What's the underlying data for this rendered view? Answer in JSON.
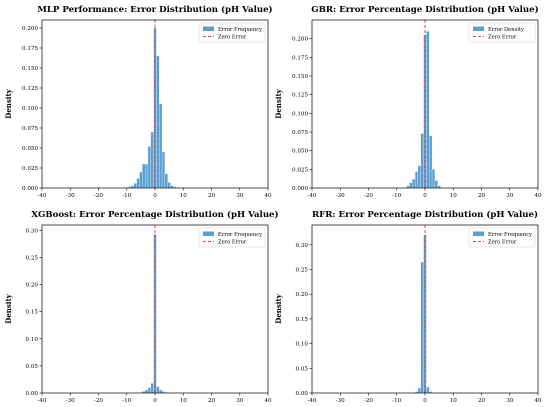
{
  "chart_data": [
    {
      "type": "bar",
      "title": "MLP Performance: Error Distribution (pH Value)",
      "xlabel": "",
      "ylabel": "Density",
      "xlim": [
        -40,
        40
      ],
      "ylim": [
        0,
        0.21
      ],
      "xticks": [
        -40,
        -30,
        -20,
        -10,
        0,
        10,
        20,
        30,
        40
      ],
      "yticks": [
        0.0,
        0.025,
        0.05,
        0.075,
        0.1,
        0.125,
        0.15,
        0.175,
        0.2
      ],
      "ytick_labels": [
        "0.000",
        "0.025",
        "0.050",
        "0.075",
        "0.100",
        "0.125",
        "0.150",
        "0.175",
        "0.200"
      ],
      "bin_width": 1,
      "bins": [
        {
          "x": -9,
          "y": 0.0015
        },
        {
          "x": -8,
          "y": 0.003
        },
        {
          "x": -7,
          "y": 0.006
        },
        {
          "x": -6,
          "y": 0.012
        },
        {
          "x": -5,
          "y": 0.02
        },
        {
          "x": -4,
          "y": 0.03
        },
        {
          "x": -3,
          "y": 0.03
        },
        {
          "x": -2,
          "y": 0.052
        },
        {
          "x": -1,
          "y": 0.07
        },
        {
          "x": 0,
          "y": 0.2
        },
        {
          "x": 1,
          "y": 0.165
        },
        {
          "x": 2,
          "y": 0.105
        },
        {
          "x": 3,
          "y": 0.045
        },
        {
          "x": 4,
          "y": 0.018
        },
        {
          "x": 5,
          "y": 0.007
        },
        {
          "x": 6,
          "y": 0.003
        },
        {
          "x": 7,
          "y": 0.0015
        }
      ],
      "legend": {
        "bar_label": "Error Frequency",
        "line_label": "Zero Error",
        "position": "top-right"
      },
      "zero_line": 0,
      "grid": false
    },
    {
      "type": "bar",
      "title": "GBR: Error Percentage Distribution (pH Value)",
      "xlabel": "",
      "ylabel": "Density",
      "xlim": [
        -40,
        40
      ],
      "ylim": [
        0,
        0.225
      ],
      "xticks": [
        -40,
        -30,
        -20,
        -10,
        0,
        10,
        20,
        30,
        40
      ],
      "yticks": [
        0.0,
        0.025,
        0.05,
        0.075,
        0.1,
        0.125,
        0.15,
        0.175,
        0.2
      ],
      "ytick_labels": [
        "0.000",
        "0.025",
        "0.050",
        "0.075",
        "0.100",
        "0.125",
        "0.150",
        "0.175",
        "0.200"
      ],
      "bin_width": 1,
      "bins": [
        {
          "x": -6,
          "y": 0.003
        },
        {
          "x": -5,
          "y": 0.007
        },
        {
          "x": -4,
          "y": 0.012
        },
        {
          "x": -3,
          "y": 0.022
        },
        {
          "x": -2,
          "y": 0.03
        },
        {
          "x": -1,
          "y": 0.073
        },
        {
          "x": 0,
          "y": 0.205
        },
        {
          "x": 1,
          "y": 0.21
        },
        {
          "x": 2,
          "y": 0.07
        },
        {
          "x": 3,
          "y": 0.025
        },
        {
          "x": 4,
          "y": 0.01
        },
        {
          "x": 5,
          "y": 0.003
        }
      ],
      "legend": {
        "bar_label": "Error Density",
        "line_label": "Zero Error",
        "position": "top-right"
      },
      "zero_line": 0,
      "grid": false
    },
    {
      "type": "bar",
      "title": "XGBoost: Error Percentage Distribution (pH Value)",
      "xlabel": "",
      "ylabel": "Density",
      "xlim": [
        -40,
        40
      ],
      "ylim": [
        0,
        0.31
      ],
      "xticks": [
        -40,
        -30,
        -20,
        -10,
        0,
        10,
        20,
        30,
        40
      ],
      "yticks": [
        0.0,
        0.05,
        0.1,
        0.15,
        0.2,
        0.25,
        0.3
      ],
      "ytick_labels": [
        "0.00",
        "0.05",
        "0.10",
        "0.15",
        "0.20",
        "0.25",
        "0.30"
      ],
      "bin_width": 1,
      "bins": [
        {
          "x": -4,
          "y": 0.003
        },
        {
          "x": -3,
          "y": 0.006
        },
        {
          "x": -2,
          "y": 0.01
        },
        {
          "x": -1,
          "y": 0.018
        },
        {
          "x": 0,
          "y": 0.293
        },
        {
          "x": 1,
          "y": 0.012
        },
        {
          "x": 2,
          "y": 0.006
        },
        {
          "x": 3,
          "y": 0.003
        },
        {
          "x": 4,
          "y": 0.0015
        }
      ],
      "legend": {
        "bar_label": "Error Frequency",
        "line_label": "Zero Error",
        "position": "top-right"
      },
      "zero_line": 0,
      "grid": false
    },
    {
      "type": "bar",
      "title": "RFR: Error Percentage Distribution (pH Value)",
      "xlabel": "",
      "ylabel": "Density",
      "xlim": [
        -40,
        40
      ],
      "ylim": [
        0,
        0.34
      ],
      "xticks": [
        -40,
        -30,
        -20,
        -10,
        0,
        10,
        20,
        30,
        40
      ],
      "yticks": [
        0.0,
        0.05,
        0.1,
        0.15,
        0.2,
        0.25,
        0.3
      ],
      "ytick_labels": [
        "0.00",
        "0.05",
        "0.10",
        "0.15",
        "0.20",
        "0.25",
        "0.30"
      ],
      "bin_width": 1,
      "bins": [
        {
          "x": -3,
          "y": 0.003
        },
        {
          "x": -2,
          "y": 0.01
        },
        {
          "x": -1,
          "y": 0.265
        },
        {
          "x": 0,
          "y": 0.32
        },
        {
          "x": 1,
          "y": 0.012
        },
        {
          "x": 2,
          "y": 0.003
        }
      ],
      "legend": {
        "bar_label": "Error Frequency",
        "line_label": "Zero Error",
        "position": "top-right"
      },
      "zero_line": 0,
      "grid": false
    }
  ],
  "colors": {
    "bar": "#5b9fd2",
    "zero_line": "#e8403a"
  }
}
